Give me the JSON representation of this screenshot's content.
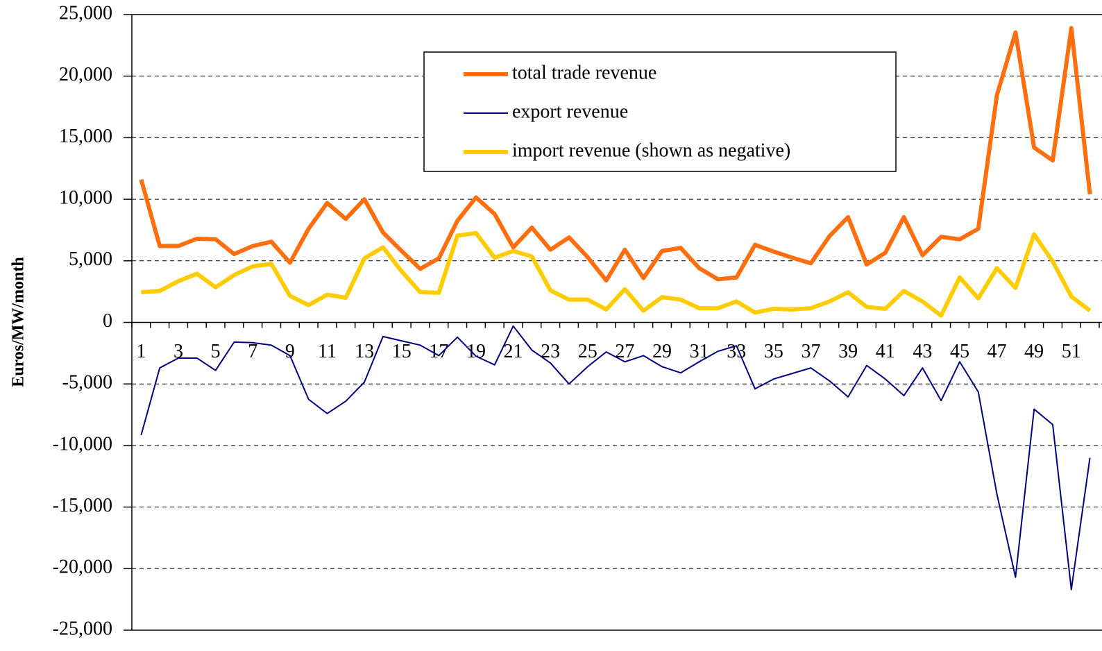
{
  "chart_data": {
    "type": "line",
    "y_label": "Euros/MW/month",
    "categories": [
      "1",
      null,
      "3",
      null,
      "5",
      null,
      "7",
      null,
      "9",
      null,
      "11",
      null,
      "13",
      null,
      "15",
      null,
      "17",
      null,
      "19",
      null,
      "21",
      null,
      "23",
      null,
      "25",
      null,
      "27",
      null,
      "29",
      null,
      "31",
      null,
      "33",
      null,
      "35",
      null,
      "37",
      null,
      "39",
      null,
      "41",
      null,
      "43",
      null,
      "45",
      null,
      "47",
      null,
      "49",
      null,
      "51",
      null
    ],
    "series": [
      {
        "name": "total trade revenue",
        "color": "#ff6f0f",
        "width": 6,
        "values": [
          11600,
          6200,
          6200,
          6800,
          6750,
          5550,
          6200,
          6550,
          4850,
          7600,
          9700,
          8400,
          10000,
          7300,
          5800,
          4350,
          5200,
          8250,
          10150,
          8800,
          6100,
          7700,
          5900,
          6900,
          5300,
          3400,
          5900,
          3600,
          5800,
          6050,
          4400,
          3500,
          3650,
          6300,
          5750,
          5250,
          4800,
          7000,
          8550,
          4700,
          5650,
          8550,
          5450,
          6950,
          6750,
          7600,
          18450,
          23550,
          14200,
          13150,
          23900,
          10400
        ]
      },
      {
        "name": "export revenue",
        "color": "#000080",
        "width": 2,
        "values": [
          -9150,
          -3700,
          -2900,
          -2900,
          -3900,
          -1600,
          -1650,
          -1850,
          -2700,
          -6250,
          -7400,
          -6400,
          -4850,
          -1150,
          -1500,
          -1850,
          -2700,
          -1200,
          -2750,
          -3450,
          -300,
          -2250,
          -3300,
          -5000,
          -3600,
          -2400,
          -3200,
          -2700,
          -3600,
          -4100,
          -3200,
          -2350,
          -1900,
          -5400,
          -4600,
          -4150,
          -3700,
          -4750,
          -6050,
          -3500,
          -4600,
          -5950,
          -3700,
          -6350,
          -3200,
          -5650,
          -13950,
          -20700,
          -7050,
          -8300,
          -21700,
          -11000
        ]
      },
      {
        "name": "import revenue (shown as negative)",
        "color": "#ffcc00",
        "width": 6,
        "values": [
          2450,
          2550,
          3350,
          3950,
          2850,
          3850,
          4550,
          4750,
          2150,
          1400,
          2250,
          2000,
          5200,
          6100,
          4150,
          2450,
          2400,
          7050,
          7250,
          5250,
          5800,
          5350,
          2600,
          1850,
          1850,
          1050,
          2700,
          950,
          2050,
          1850,
          1150,
          1150,
          1700,
          800,
          1100,
          1050,
          1150,
          1700,
          2450,
          1250,
          1100,
          2550,
          1700,
          550,
          3650,
          1950,
          4400,
          2800,
          7150,
          4950,
          2100,
          950
        ]
      }
    ],
    "ylim": [
      -25000,
      25000
    ],
    "yticks": [
      {
        "value": -25000,
        "label": "-25,000"
      },
      {
        "value": -20000,
        "label": "-20,000"
      },
      {
        "value": -15000,
        "label": "-15,000"
      },
      {
        "value": -10000,
        "label": "-10,000"
      },
      {
        "value": -5000,
        "label": "-5,000"
      },
      0,
      {
        "value": 5000,
        "label": "5,000"
      },
      {
        "value": 10000,
        "label": "10,000"
      },
      {
        "value": 15000,
        "label": "15,000"
      },
      {
        "value": 20000,
        "label": "20,000"
      },
      {
        "value": 25000,
        "label": "25,000"
      }
    ],
    "grid": true
  }
}
